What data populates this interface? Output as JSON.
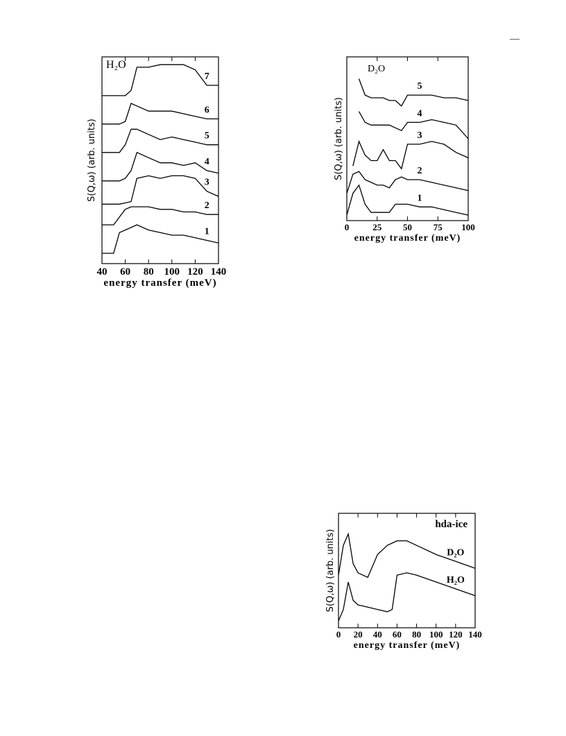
{
  "page_mark": "—",
  "chart_data": [
    {
      "type": "line",
      "title": "H₂O",
      "x_label": "energy transfer (meV)",
      "y_label": "S(Q,ω)  (arb. units)",
      "x": [
        40,
        50,
        55,
        60,
        65,
        70,
        80,
        90,
        100,
        110,
        120,
        130,
        140
      ],
      "xlim": [
        40,
        140
      ],
      "xticks": [
        40,
        60,
        80,
        100,
        120,
        140
      ],
      "ylim": [
        0,
        8
      ],
      "color": "#000000",
      "series": [
        {
          "name": "1",
          "values": [
            0.4,
            0.4,
            1.2,
            1.3,
            1.4,
            1.5,
            1.3,
            1.2,
            1.1,
            1.1,
            1.0,
            0.9,
            0.8
          ]
        },
        {
          "name": "2",
          "values": [
            1.5,
            1.5,
            1.8,
            2.1,
            2.2,
            2.2,
            2.2,
            2.1,
            2.1,
            2.0,
            2.0,
            1.9,
            1.9
          ]
        },
        {
          "name": "3",
          "values": [
            2.3,
            2.3,
            2.3,
            2.35,
            2.4,
            3.3,
            3.4,
            3.3,
            3.4,
            3.4,
            3.3,
            2.8,
            2.6
          ]
        },
        {
          "name": "4",
          "values": [
            3.2,
            3.2,
            3.2,
            3.3,
            3.6,
            4.3,
            4.1,
            3.9,
            3.9,
            3.8,
            3.9,
            3.6,
            3.5
          ]
        },
        {
          "name": "5",
          "values": [
            4.3,
            4.3,
            4.3,
            4.6,
            5.2,
            5.2,
            5.0,
            4.8,
            4.9,
            4.8,
            4.7,
            4.6,
            4.6
          ]
        },
        {
          "name": "6",
          "values": [
            5.4,
            5.4,
            5.4,
            5.5,
            6.2,
            6.1,
            5.9,
            5.9,
            5.9,
            5.8,
            5.7,
            5.6,
            5.6
          ]
        },
        {
          "name": "7",
          "values": [
            6.5,
            6.5,
            6.5,
            6.5,
            6.7,
            7.6,
            7.6,
            7.7,
            7.7,
            7.7,
            7.5,
            6.9,
            6.9
          ]
        }
      ]
    },
    {
      "type": "line",
      "title": "D₂O",
      "x_label": "energy transfer (meV)",
      "y_label": "S(Q,ω)  (arb. units)",
      "x": [
        0,
        5,
        10,
        15,
        20,
        25,
        30,
        35,
        40,
        45,
        50,
        60,
        70,
        80,
        90,
        100
      ],
      "xlim": [
        0,
        100
      ],
      "xticks": [
        0,
        25,
        50,
        75,
        100
      ],
      "ylim": [
        0,
        6
      ],
      "color": "#000000",
      "series": [
        {
          "name": "1",
          "values": [
            0.2,
            1.0,
            1.3,
            0.6,
            0.3,
            0.3,
            0.3,
            0.3,
            0.6,
            0.6,
            0.6,
            0.5,
            0.5,
            0.4,
            0.3,
            0.2
          ]
        },
        {
          "name": "2",
          "values": [
            1.0,
            1.7,
            1.8,
            1.5,
            1.4,
            1.3,
            1.3,
            1.2,
            1.5,
            1.6,
            1.5,
            1.5,
            1.4,
            1.3,
            1.2,
            1.1
          ]
        },
        {
          "name": "3",
          "values": [
            null,
            2.0,
            2.9,
            2.4,
            2.2,
            2.2,
            2.6,
            2.2,
            2.2,
            1.9,
            2.8,
            2.8,
            2.9,
            2.8,
            2.5,
            2.3
          ]
        },
        {
          "name": "4",
          "values": [
            null,
            null,
            4.0,
            3.6,
            3.5,
            3.5,
            3.5,
            3.5,
            3.4,
            3.3,
            3.6,
            3.6,
            3.7,
            3.6,
            3.5,
            3.0
          ]
        },
        {
          "name": "5",
          "values": [
            null,
            null,
            5.2,
            4.6,
            4.5,
            4.5,
            4.5,
            4.4,
            4.4,
            4.2,
            4.6,
            4.6,
            4.6,
            4.5,
            4.5,
            4.4
          ]
        }
      ]
    },
    {
      "type": "line",
      "title": "hda-ice",
      "x_label": "energy transfer (meV)",
      "y_label": "S(Q,ω)  (arb. units)",
      "x": [
        0,
        5,
        10,
        15,
        20,
        30,
        40,
        50,
        55,
        60,
        70,
        80,
        100,
        120,
        140
      ],
      "xlim": [
        0,
        140
      ],
      "xticks": [
        0,
        20,
        40,
        60,
        80,
        100,
        120,
        140
      ],
      "ylim": [
        0,
        5
      ],
      "color": "#000000",
      "series": [
        {
          "name": "D₂O",
          "values": [
            2.3,
            3.6,
            4.1,
            2.8,
            2.4,
            2.2,
            3.2,
            3.6,
            3.7,
            3.8,
            3.8,
            3.6,
            3.2,
            2.9,
            2.6
          ]
        },
        {
          "name": "H₂O",
          "values": [
            0.3,
            0.8,
            2.0,
            1.2,
            1.0,
            0.9,
            0.8,
            0.7,
            0.8,
            2.3,
            2.4,
            2.3,
            2.0,
            1.7,
            1.4
          ]
        }
      ]
    }
  ]
}
